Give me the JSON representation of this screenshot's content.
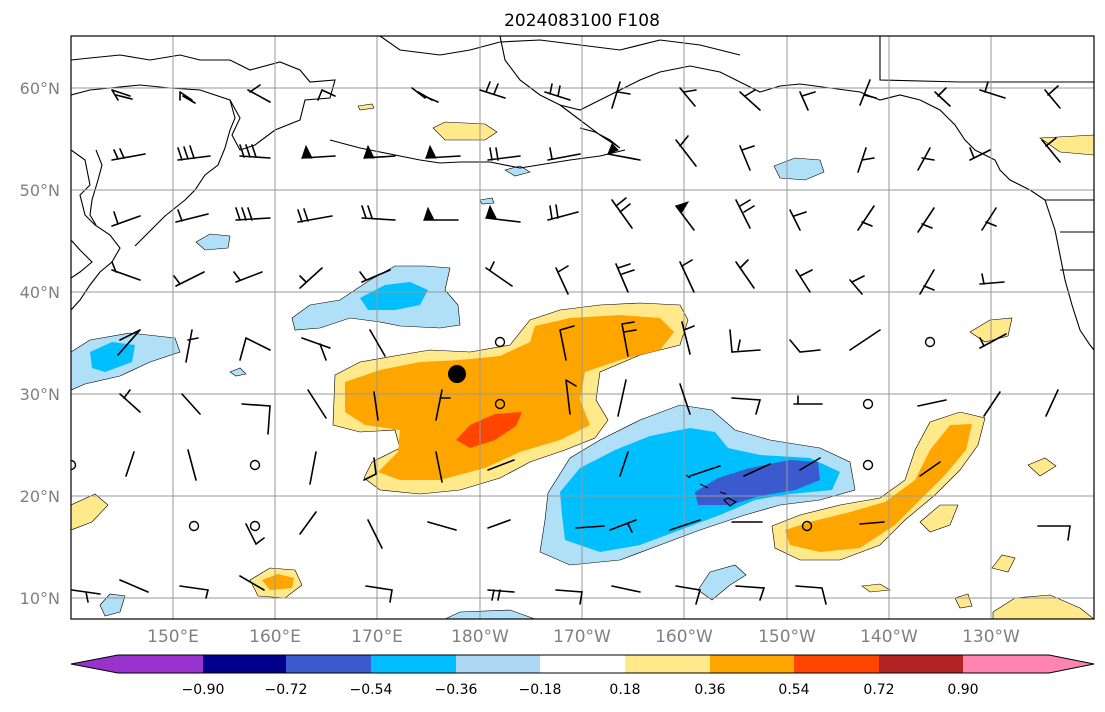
{
  "title": "2024083100 F108",
  "lat_labels": [
    "60°N",
    "50°N",
    "40°N",
    "30°N",
    "20°N",
    "10°N"
  ],
  "lon_labels": [
    "150°E",
    "160°E",
    "170°E",
    "180°W",
    "170°W",
    "160°W",
    "150°W",
    "140°W",
    "130°W"
  ],
  "colorbar": {
    "ticks": [
      "−0.90",
      "−0.72",
      "−0.54",
      "−0.36",
      "−0.18",
      "0.18",
      "0.36",
      "0.54",
      "0.72",
      "0.90"
    ],
    "colors": [
      "#9932cc",
      "#00008b",
      "#3a5acd",
      "#00bfff",
      "#add8f5",
      "#ffffff",
      "#ffe98a",
      "#ffa500",
      "#ff4500",
      "#b22222",
      "#ff85b0"
    ]
  },
  "colors": {
    "neg_light": "#b0e0f8",
    "neg_mid": "#00bfff",
    "neg_strong": "#3a5acd",
    "pos_light": "#ffe98a",
    "pos_mid": "#ffa500",
    "pos_strong": "#ff4500"
  },
  "marker": {
    "label": "storm-center"
  }
}
